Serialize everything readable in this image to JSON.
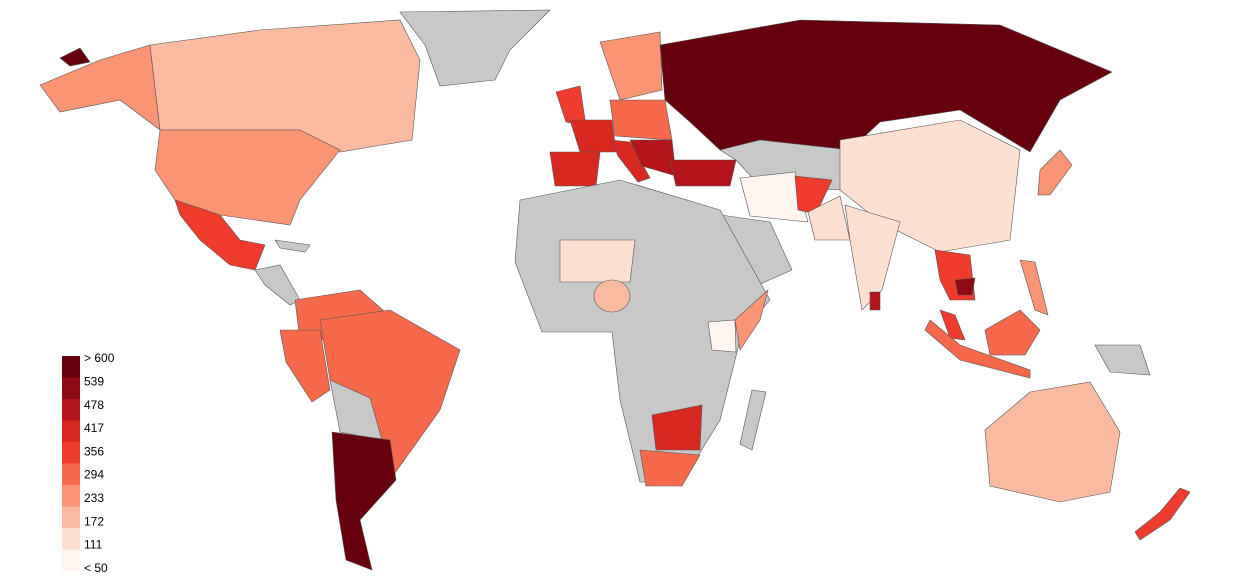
{
  "legend": {
    "labels": [
      "> 600",
      539,
      478,
      417,
      356,
      294,
      233,
      172,
      111,
      "< 50"
    ],
    "colors": [
      "#67000d",
      "#8e0b14",
      "#b5141b",
      "#d8281f",
      "#ef3b2c",
      "#f6694b",
      "#fa9473",
      "#fcbba1",
      "#fde0d2",
      "#fff5f0"
    ]
  }
}
